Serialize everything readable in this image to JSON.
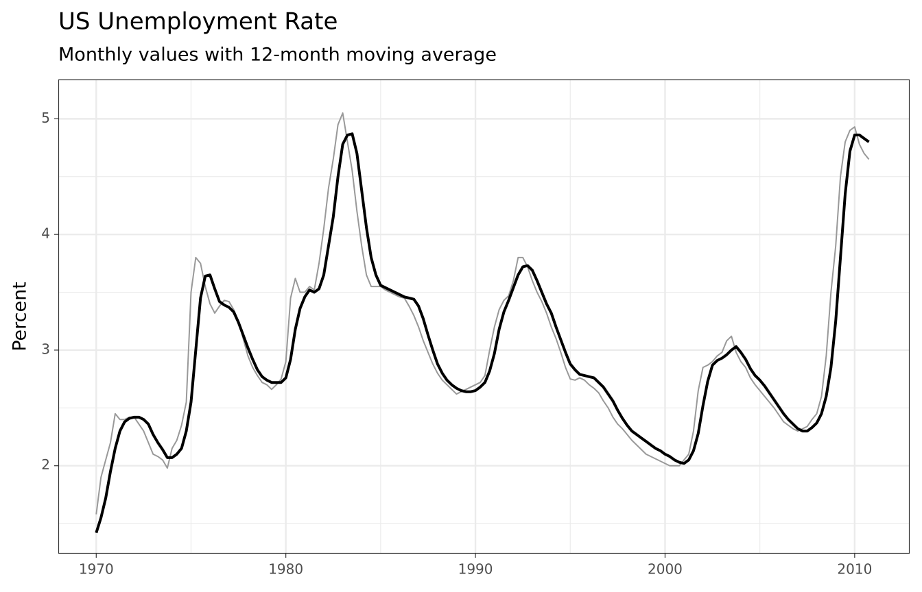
{
  "chart_data": {
    "type": "line",
    "title": "US Unemployment Rate",
    "subtitle": "Monthly values with 12-month moving average",
    "y_label": "Percent",
    "xlim": [
      1968,
      2012.9
    ],
    "ylim": [
      1.24,
      5.34
    ],
    "xticks": [
      1970,
      1980,
      1990,
      2000,
      2010
    ],
    "yticks": [
      2,
      3,
      4,
      5
    ],
    "minor_xticks": [
      1975,
      1985,
      1995,
      2005
    ],
    "minor_yticks": [
      1.5,
      2.5,
      3.5,
      4.5
    ],
    "grid": true,
    "x": [
      1970,
      1970.25,
      1970.5,
      1970.75,
      1971,
      1971.25,
      1971.5,
      1971.75,
      1972,
      1972.25,
      1972.5,
      1972.75,
      1973,
      1973.25,
      1973.5,
      1973.75,
      1974,
      1974.25,
      1974.5,
      1974.75,
      1975,
      1975.25,
      1975.5,
      1975.75,
      1976,
      1976.25,
      1976.5,
      1976.75,
      1977,
      1977.25,
      1977.5,
      1977.75,
      1978,
      1978.25,
      1978.5,
      1978.75,
      1979,
      1979.25,
      1979.5,
      1979.75,
      1980,
      1980.25,
      1980.5,
      1980.75,
      1981,
      1981.25,
      1981.5,
      1981.75,
      1982,
      1982.25,
      1982.5,
      1982.75,
      1983,
      1983.25,
      1983.5,
      1983.75,
      1984,
      1984.25,
      1984.5,
      1984.75,
      1985,
      1985.25,
      1985.5,
      1985.75,
      1986,
      1986.25,
      1986.5,
      1986.75,
      1987,
      1987.25,
      1987.5,
      1987.75,
      1988,
      1988.25,
      1988.5,
      1988.75,
      1989,
      1989.25,
      1989.5,
      1989.75,
      1990,
      1990.25,
      1990.5,
      1990.75,
      1991,
      1991.25,
      1991.5,
      1991.75,
      1992,
      1992.25,
      1992.5,
      1992.75,
      1993,
      1993.25,
      1993.5,
      1993.75,
      1994,
      1994.25,
      1994.5,
      1994.75,
      1995,
      1995.25,
      1995.5,
      1995.75,
      1996,
      1996.25,
      1996.5,
      1996.75,
      1997,
      1997.25,
      1997.5,
      1997.75,
      1998,
      1998.25,
      1998.5,
      1998.75,
      1999,
      1999.25,
      1999.5,
      1999.75,
      2000,
      2000.25,
      2000.5,
      2000.75,
      2001,
      2001.25,
      2001.5,
      2001.75,
      2002,
      2002.25,
      2002.5,
      2002.75,
      2003,
      2003.25,
      2003.5,
      2003.75,
      2004,
      2004.25,
      2004.5,
      2004.75,
      2005,
      2005.25,
      2005.5,
      2005.75,
      2006,
      2006.25,
      2006.5,
      2006.75,
      2007,
      2007.25,
      2007.5,
      2007.75,
      2008,
      2008.25,
      2008.5,
      2008.75,
      2009,
      2009.25,
      2009.5,
      2009.75,
      2010,
      2010.25,
      2010.5,
      2010.75
    ],
    "series": [
      {
        "color": "#999999",
        "width": 2,
        "values": [
          1.58,
          1.9,
          2.05,
          2.2,
          2.45,
          2.4,
          2.4,
          2.42,
          2.42,
          2.36,
          2.3,
          2.2,
          2.1,
          2.08,
          2.05,
          1.98,
          2.15,
          2.22,
          2.35,
          2.55,
          3.5,
          3.8,
          3.75,
          3.55,
          3.4,
          3.32,
          3.38,
          3.43,
          3.42,
          3.35,
          3.25,
          3.1,
          2.95,
          2.85,
          2.78,
          2.72,
          2.7,
          2.66,
          2.7,
          2.75,
          2.9,
          3.45,
          3.62,
          3.5,
          3.5,
          3.55,
          3.52,
          3.75,
          4.05,
          4.4,
          4.65,
          4.95,
          5.05,
          4.8,
          4.55,
          4.2,
          3.9,
          3.65,
          3.55,
          3.55,
          3.55,
          3.52,
          3.5,
          3.48,
          3.46,
          3.45,
          3.38,
          3.3,
          3.2,
          3.08,
          2.98,
          2.88,
          2.8,
          2.74,
          2.7,
          2.66,
          2.62,
          2.64,
          2.66,
          2.68,
          2.7,
          2.72,
          2.78,
          3.0,
          3.2,
          3.35,
          3.43,
          3.47,
          3.6,
          3.8,
          3.8,
          3.72,
          3.6,
          3.5,
          3.42,
          3.32,
          3.2,
          3.1,
          2.98,
          2.85,
          2.75,
          2.74,
          2.76,
          2.74,
          2.7,
          2.67,
          2.63,
          2.56,
          2.5,
          2.42,
          2.36,
          2.32,
          2.27,
          2.22,
          2.18,
          2.14,
          2.1,
          2.08,
          2.06,
          2.04,
          2.02,
          2.0,
          2.0,
          2.0,
          2.05,
          2.1,
          2.3,
          2.65,
          2.85,
          2.87,
          2.9,
          2.95,
          2.98,
          3.08,
          3.12,
          2.98,
          2.9,
          2.85,
          2.76,
          2.7,
          2.65,
          2.6,
          2.55,
          2.5,
          2.44,
          2.38,
          2.35,
          2.32,
          2.3,
          2.32,
          2.34,
          2.4,
          2.45,
          2.6,
          2.95,
          3.5,
          3.9,
          4.5,
          4.8,
          4.9,
          4.93,
          4.78,
          4.7,
          4.65
        ]
      },
      {
        "color": "#000000",
        "width": 4,
        "values": [
          1.42,
          1.55,
          1.72,
          1.95,
          2.15,
          2.3,
          2.38,
          2.41,
          2.42,
          2.42,
          2.4,
          2.36,
          2.27,
          2.2,
          2.14,
          2.07,
          2.07,
          2.1,
          2.15,
          2.3,
          2.55,
          3.0,
          3.45,
          3.64,
          3.65,
          3.53,
          3.42,
          3.39,
          3.37,
          3.33,
          3.24,
          3.13,
          3.02,
          2.92,
          2.83,
          2.77,
          2.74,
          2.72,
          2.72,
          2.72,
          2.76,
          2.92,
          3.18,
          3.36,
          3.46,
          3.52,
          3.5,
          3.53,
          3.65,
          3.9,
          4.15,
          4.5,
          4.78,
          4.86,
          4.87,
          4.7,
          4.38,
          4.06,
          3.8,
          3.65,
          3.56,
          3.54,
          3.52,
          3.5,
          3.48,
          3.46,
          3.45,
          3.44,
          3.38,
          3.27,
          3.13,
          3.0,
          2.88,
          2.8,
          2.74,
          2.7,
          2.67,
          2.65,
          2.64,
          2.64,
          2.65,
          2.68,
          2.72,
          2.82,
          2.97,
          3.18,
          3.33,
          3.43,
          3.54,
          3.65,
          3.72,
          3.73,
          3.69,
          3.6,
          3.5,
          3.4,
          3.32,
          3.2,
          3.09,
          2.98,
          2.88,
          2.83,
          2.79,
          2.78,
          2.77,
          2.76,
          2.72,
          2.68,
          2.62,
          2.56,
          2.48,
          2.41,
          2.35,
          2.3,
          2.27,
          2.24,
          2.21,
          2.18,
          2.15,
          2.13,
          2.1,
          2.08,
          2.05,
          2.03,
          2.02,
          2.05,
          2.13,
          2.28,
          2.52,
          2.73,
          2.87,
          2.91,
          2.93,
          2.96,
          3.0,
          3.03,
          2.98,
          2.92,
          2.84,
          2.78,
          2.74,
          2.69,
          2.63,
          2.57,
          2.51,
          2.45,
          2.4,
          2.36,
          2.32,
          2.3,
          2.3,
          2.33,
          2.37,
          2.45,
          2.6,
          2.85,
          3.25,
          3.8,
          4.35,
          4.72,
          4.86,
          4.86,
          4.83,
          4.8
        ]
      }
    ]
  }
}
